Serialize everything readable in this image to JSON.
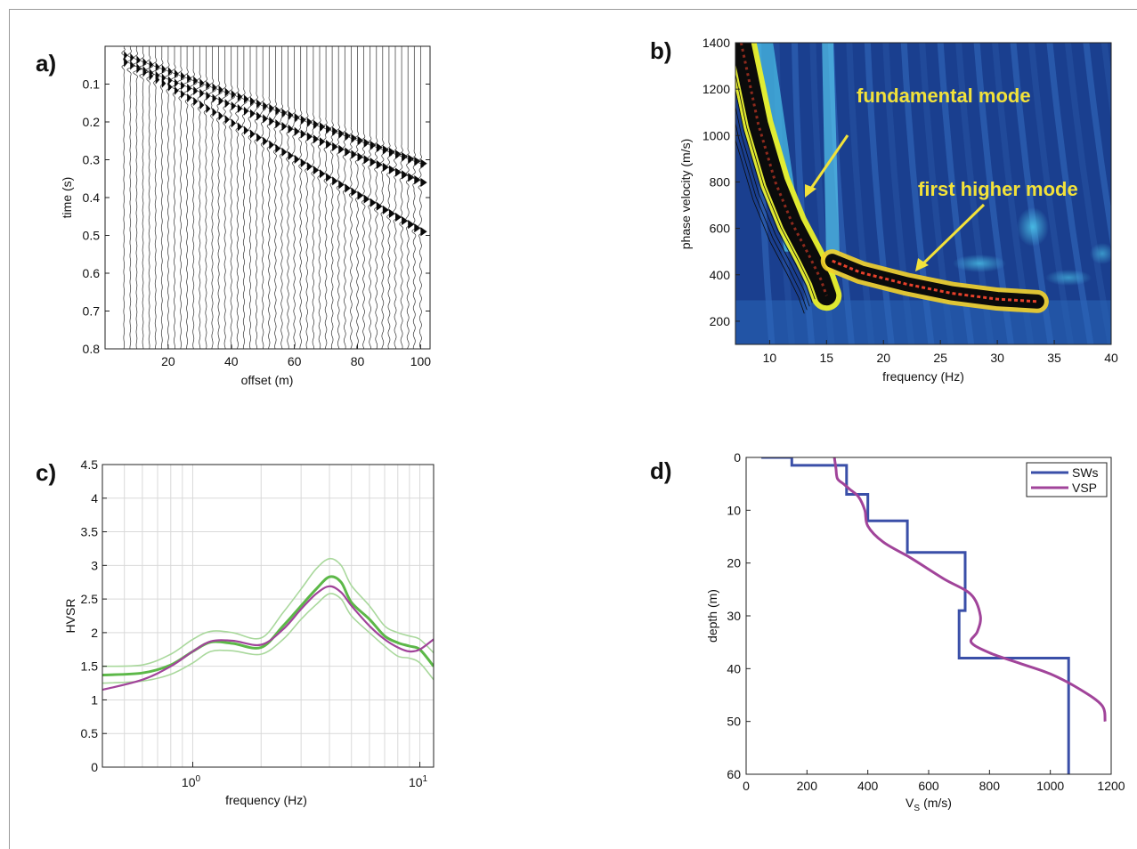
{
  "chart_data": [
    {
      "panel": "a)",
      "type": "seismogram",
      "xlabel": "offset (m)",
      "ylabel": "time (s)",
      "xticks": [
        "20",
        "40",
        "60",
        "80",
        "100"
      ],
      "yticks": [
        "0.1",
        "0.2",
        "0.3",
        "0.4",
        "0.5",
        "0.6",
        "0.7",
        "0.8"
      ],
      "xlim": [
        0,
        103
      ],
      "ylim": [
        0,
        0.8
      ],
      "trace_spacing_m": 2,
      "first_offset_m": 6,
      "last_offset_m": 100,
      "arrivals": [
        {
          "x": [
            8,
            100
          ],
          "y": [
            0.03,
            0.31
          ]
        },
        {
          "x": [
            8,
            100
          ],
          "y": [
            0.05,
            0.36
          ]
        },
        {
          "x": [
            10,
            100
          ],
          "y": [
            0.06,
            0.49
          ]
        }
      ]
    },
    {
      "panel": "b)",
      "type": "heatmap",
      "xlabel": "frequency (Hz)",
      "ylabel": "phase velocity (m/s)",
      "xticks": [
        "10",
        "15",
        "20",
        "25",
        "30",
        "35",
        "40"
      ],
      "yticks": [
        "200",
        "400",
        "600",
        "800",
        "1000",
        "1200",
        "1400"
      ],
      "xlim": [
        7,
        40
      ],
      "ylim": [
        100,
        1400
      ],
      "annotations": [
        "fundamental mode",
        "first higher mode"
      ],
      "modes": [
        {
          "f": [
            7.5,
            9,
            10.5,
            12,
            13.5,
            14.5,
            15
          ],
          "v": [
            1400,
            1050,
            800,
            620,
            480,
            380,
            310
          ]
        },
        {
          "f": [
            15.5,
            18,
            22,
            26,
            30,
            33.5
          ],
          "v": [
            460,
            410,
            360,
            320,
            295,
            285
          ]
        }
      ]
    },
    {
      "panel": "c)",
      "type": "line",
      "xscale": "log",
      "xlabel": "frequency (Hz)",
      "ylabel": "HVSR",
      "xticks": [
        "10",
        "10"
      ],
      "xtick_exponents": [
        "0",
        "1"
      ],
      "yticks": [
        "0",
        "0.5",
        "1",
        "1.5",
        "2",
        "2.5",
        "3",
        "3.5",
        "4",
        "4.5"
      ],
      "xlim": [
        0.4,
        11.5
      ],
      "ylim": [
        0,
        4.5
      ],
      "x": [
        0.4,
        0.6,
        0.8,
        1.0,
        1.2,
        1.5,
        2.0,
        2.5,
        3.0,
        3.5,
        4.0,
        4.5,
        5.0,
        6.0,
        7.0,
        8.0,
        9.0,
        10.0,
        11.5
      ],
      "series": [
        {
          "values": [
            1.37,
            1.4,
            1.52,
            1.72,
            1.86,
            1.84,
            1.78,
            2.1,
            2.4,
            2.65,
            2.83,
            2.75,
            2.45,
            2.2,
            1.95,
            1.85,
            1.8,
            1.75,
            1.5
          ]
        },
        {
          "values": [
            1.5,
            1.52,
            1.68,
            1.9,
            2.02,
            2.0,
            1.92,
            2.3,
            2.65,
            2.95,
            3.1,
            3.0,
            2.7,
            2.4,
            2.1,
            2.0,
            1.95,
            1.9,
            1.7
          ]
        },
        {
          "values": [
            1.25,
            1.28,
            1.38,
            1.55,
            1.72,
            1.73,
            1.68,
            1.9,
            2.2,
            2.42,
            2.58,
            2.5,
            2.25,
            2.0,
            1.8,
            1.65,
            1.62,
            1.55,
            1.3
          ]
        },
        {
          "values": [
            1.15,
            1.3,
            1.5,
            1.72,
            1.87,
            1.88,
            1.82,
            2.05,
            2.35,
            2.58,
            2.69,
            2.6,
            2.4,
            2.1,
            1.9,
            1.78,
            1.72,
            1.75,
            1.9
          ]
        }
      ],
      "colors": [
        "#5cb848",
        "#a9d89c",
        "#a9d89c",
        "#a1449a"
      ]
    },
    {
      "panel": "d)",
      "type": "line",
      "xlabel": "V",
      "xlabel_subscript": "S",
      "xlabel_unit": "(m/s)",
      "ylabel": "depth (m)",
      "xticks": [
        "0",
        "200",
        "400",
        "600",
        "800",
        "1000",
        "1200"
      ],
      "yticks": [
        "0",
        "10",
        "20",
        "30",
        "40",
        "50",
        "60"
      ],
      "xlim": [
        0,
        1200
      ],
      "ylim": [
        0,
        60
      ],
      "legend_position": "top-right",
      "series": [
        {
          "name": "SWs",
          "color": "#3a4fa8",
          "vs": [
            50,
            150,
            150,
            330,
            330,
            400,
            400,
            530,
            530,
            720,
            720,
            700,
            700,
            1060,
            1060
          ],
          "depth": [
            0,
            0,
            1.5,
            1.5,
            7,
            7,
            12,
            12,
            18,
            18,
            29,
            29,
            38,
            38,
            60
          ]
        },
        {
          "name": "VSP",
          "color": "#a1449a",
          "vs": [
            290,
            295,
            300,
            320,
            340,
            370,
            390,
            400,
            450,
            540,
            650,
            740,
            770,
            760,
            740,
            800,
            900,
            1000,
            1100,
            1170,
            1180
          ],
          "depth": [
            0,
            2,
            4,
            5,
            6,
            7.5,
            10,
            13,
            16,
            19,
            23,
            26,
            30,
            33,
            35,
            37,
            39,
            41,
            44,
            47,
            50
          ]
        }
      ]
    }
  ]
}
